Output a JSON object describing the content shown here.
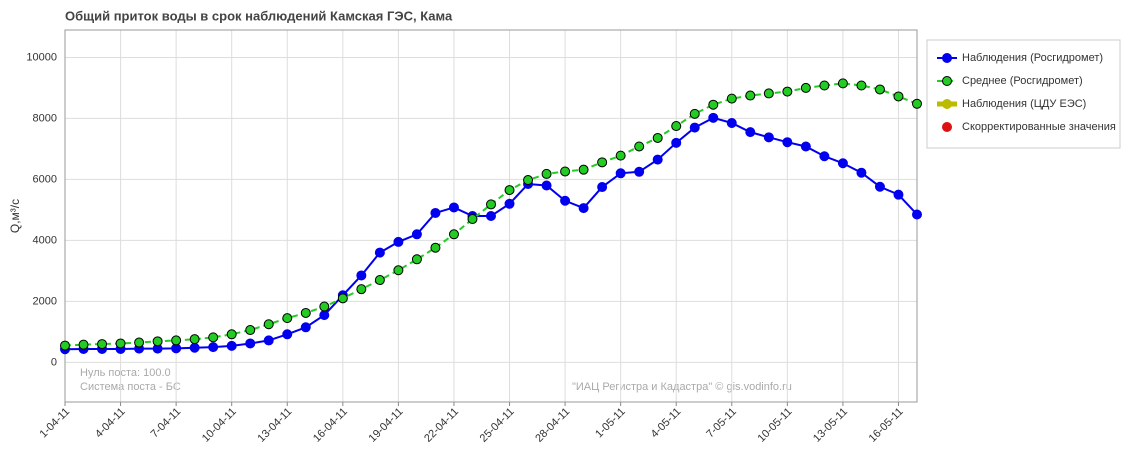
{
  "chart_data": {
    "type": "line",
    "title": "Общий приток воды в срок наблюдений Камская ГЭС,  Кама",
    "y_label": "Q,м³/с",
    "annotations": [
      "Нуль поста: 100.0",
      "Система поста - БС",
      "\"ИАЦ Регистра и Кадастра\" © gis.vodinfo.ru"
    ],
    "categories": [
      "1-04-11",
      null,
      null,
      "4-04-11",
      null,
      null,
      "7-04-11",
      null,
      null,
      "10-04-11",
      null,
      null,
      "13-04-11",
      null,
      null,
      "16-04-11",
      null,
      null,
      "19-04-11",
      null,
      null,
      "22-04-11",
      null,
      null,
      "25-04-11",
      null,
      null,
      "28-04-11",
      null,
      null,
      "1-05-11",
      null,
      null,
      "4-05-11",
      null,
      null,
      "7-05-11",
      null,
      null,
      "10-05-11",
      null,
      null,
      "13-05-11",
      null,
      null,
      "16-05-11",
      null
    ],
    "ylim": [
      -1300,
      10900
    ],
    "yticks": [
      0,
      2000,
      4000,
      6000,
      8000,
      10000
    ],
    "grid": true,
    "legend": "right",
    "series": [
      {
        "name": "Наблюдения (Росгидромет)",
        "color": "#0000ee",
        "line_style": "solid",
        "values": [
          430,
          440,
          440,
          440,
          450,
          450,
          460,
          480,
          500,
          540,
          620,
          720,
          920,
          1150,
          1550,
          2200,
          2850,
          3600,
          3950,
          4200,
          4900,
          5080,
          4800,
          4800,
          5200,
          5850,
          5800,
          5300,
          5060,
          5750,
          6200,
          6250,
          6650,
          7200,
          7700,
          8020,
          7850,
          7550,
          7380,
          7220,
          7080,
          6760,
          6530,
          6220,
          5760,
          5500,
          4850
        ]
      },
      {
        "name": "Среднее (Росгидромет)",
        "color": "#22cc22",
        "line_style": "dashed",
        "values": [
          550,
          580,
          600,
          620,
          650,
          690,
          720,
          760,
          820,
          920,
          1060,
          1250,
          1450,
          1620,
          1830,
          2100,
          2400,
          2700,
          3020,
          3380,
          3760,
          4200,
          4700,
          5180,
          5650,
          5980,
          6180,
          6260,
          6320,
          6560,
          6780,
          7080,
          7360,
          7750,
          8150,
          8450,
          8650,
          8750,
          8820,
          8880,
          9000,
          9080,
          9150,
          9080,
          8950,
          8720,
          8480
        ]
      },
      {
        "name": "Наблюдения (ЦДУ ЕЭС)",
        "color": "#bbbb00",
        "line_style": "thick",
        "values": [
          null,
          null,
          null,
          null,
          null,
          null,
          null,
          null,
          null,
          null,
          null,
          null,
          null,
          null,
          null,
          null,
          null,
          null,
          null,
          null,
          null,
          null,
          null,
          null,
          null,
          null,
          null,
          null,
          null,
          null,
          null,
          null,
          null,
          null,
          null,
          null,
          null,
          null,
          null,
          null,
          null,
          null,
          null,
          null,
          null,
          null,
          null
        ]
      },
      {
        "name": "Скорректированные значения",
        "color": "#dd1111",
        "line_style": "none",
        "values": [
          null,
          null,
          null,
          null,
          null,
          null,
          null,
          null,
          null,
          null,
          null,
          null,
          null,
          null,
          null,
          null,
          null,
          null,
          null,
          null,
          null,
          null,
          null,
          null,
          null,
          null,
          null,
          null,
          null,
          null,
          null,
          null,
          null,
          null,
          null,
          null,
          null,
          null,
          null,
          null,
          null,
          null,
          null,
          null,
          null,
          null,
          null
        ]
      }
    ]
  }
}
